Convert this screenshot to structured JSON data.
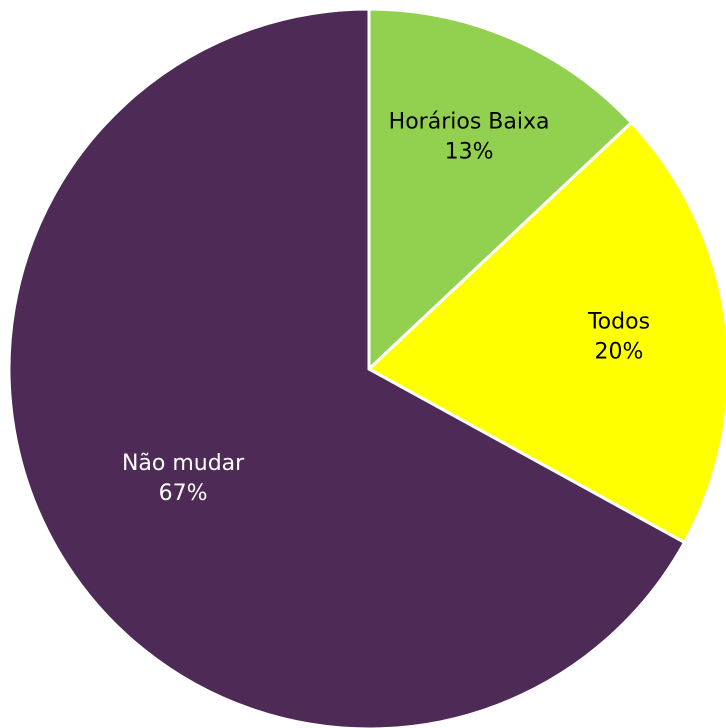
{
  "chart_data": {
    "type": "pie",
    "categories": [
      "Horários Baixa",
      "Todos",
      "Não mudar"
    ],
    "values": [
      13,
      20,
      67
    ],
    "value_labels": [
      "13%",
      "20%",
      "67%"
    ],
    "colors": [
      "#92d050",
      "#ffff00",
      "#4e2a56"
    ]
  }
}
